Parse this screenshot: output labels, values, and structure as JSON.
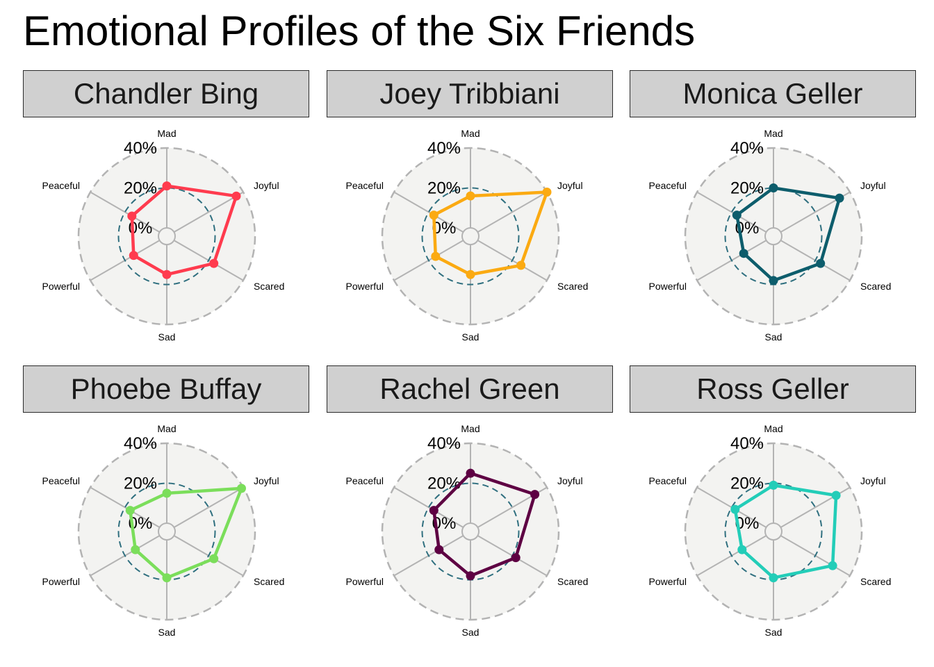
{
  "title": "Emotional Profiles of the Six Friends",
  "grid_color": "#b3b3b3",
  "ref_circle_color": "#2f6f7f",
  "panel_bg": "#f3f3f1",
  "chart_data": {
    "type": "radar",
    "axes": [
      "Mad",
      "Joyful",
      "Scared",
      "Sad",
      "Powerful",
      "Peaceful"
    ],
    "r_ticks": [
      "0%",
      "20%",
      "40%"
    ],
    "rlim": [
      0,
      40
    ],
    "reference_circle": 20,
    "grid": true,
    "series": [
      {
        "name": "Chandler Bing",
        "color": "#ff3b4e",
        "values": [
          21,
          36,
          23,
          15,
          15,
          16
        ]
      },
      {
        "name": "Joey Tribbiani",
        "color": "#fbaa12",
        "values": [
          16,
          40,
          25,
          15,
          16,
          17
        ]
      },
      {
        "name": "Monica Geller",
        "color": "#0d5d6c",
        "values": [
          20,
          34,
          23,
          18,
          13,
          17
        ]
      },
      {
        "name": "Phoebe Buffay",
        "color": "#7bde5b",
        "values": [
          15,
          39,
          23,
          19,
          14,
          17
        ]
      },
      {
        "name": "Rachel Green",
        "color": "#5e0043",
        "values": [
          25,
          33,
          22,
          18,
          14,
          17
        ]
      },
      {
        "name": "Ross Geller",
        "color": "#23cdb8",
        "values": [
          19,
          32,
          30,
          19,
          14,
          18
        ]
      }
    ]
  }
}
